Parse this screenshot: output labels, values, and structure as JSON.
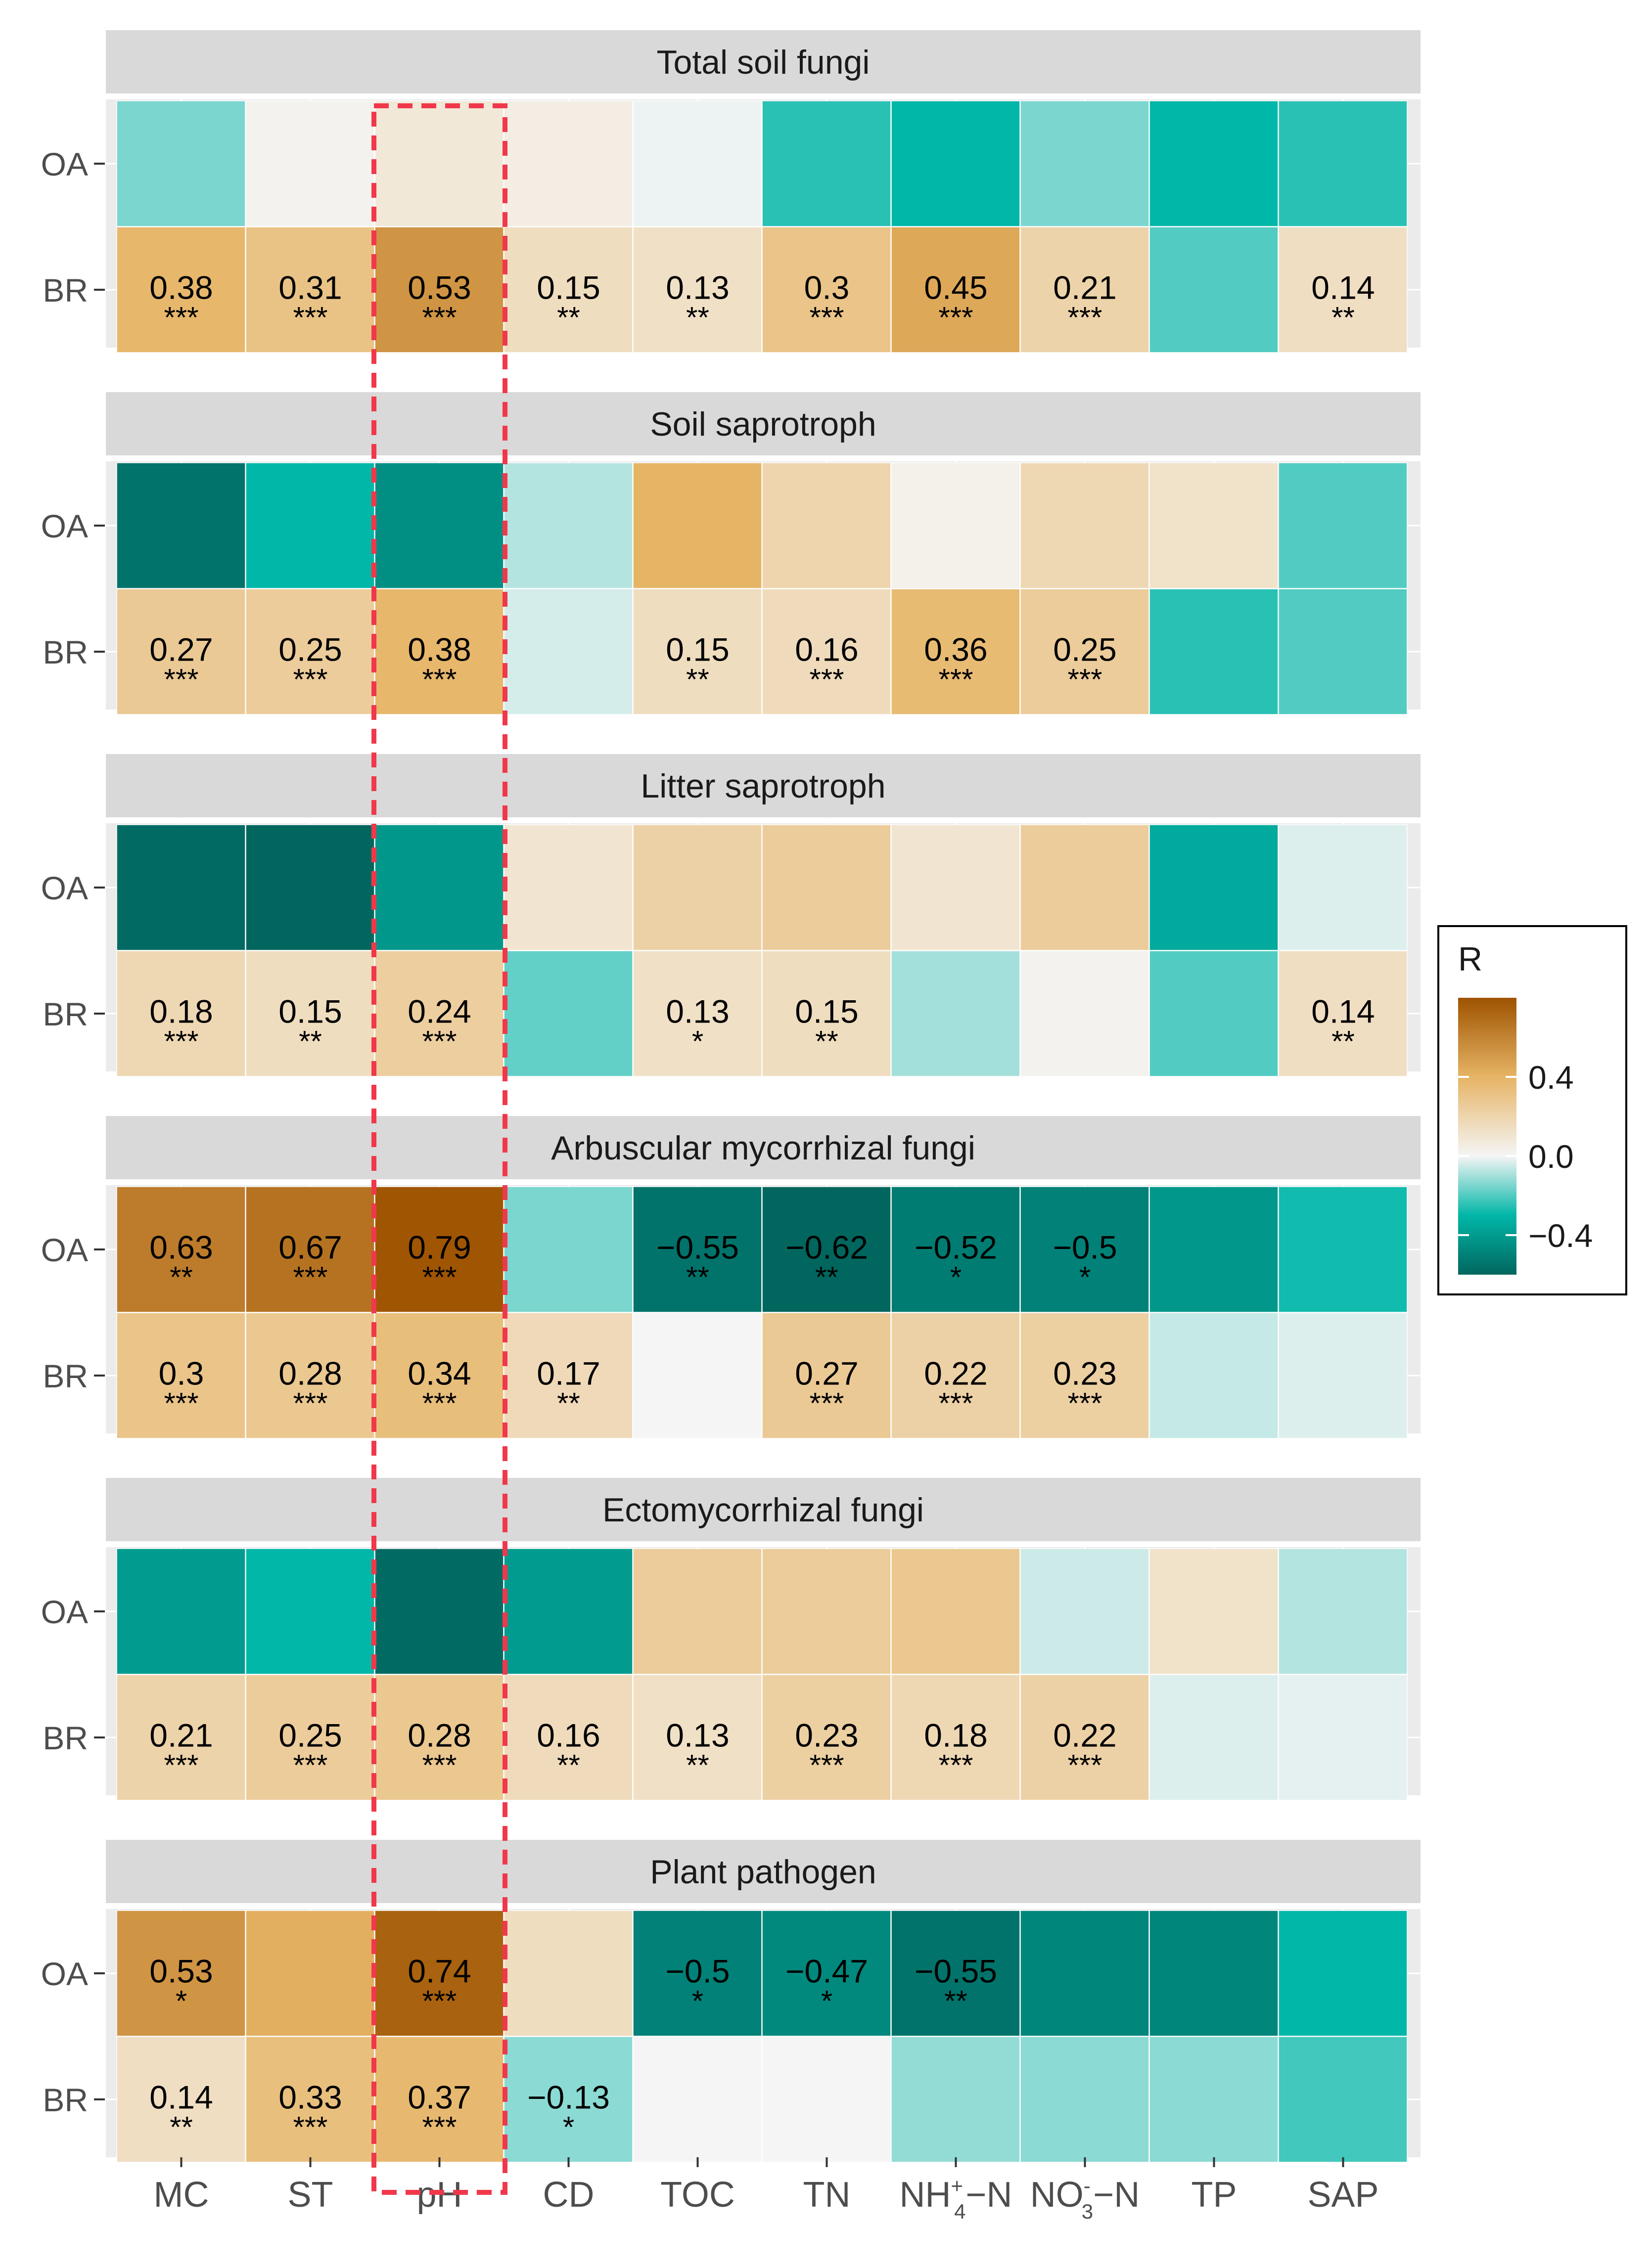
{
  "chart_data": {
    "type": "heatmap",
    "x_categories": [
      "MC",
      "ST",
      "pH",
      "CD",
      "TOC",
      "TN",
      "NH+4-N",
      "NO-3-N",
      "TP",
      "SAP"
    ],
    "y_categories": [
      "OA",
      "BR"
    ],
    "x_tick_labels": [
      {
        "main": "MC"
      },
      {
        "main": "ST"
      },
      {
        "main": "pH"
      },
      {
        "main": "CD"
      },
      {
        "main": "TOC"
      },
      {
        "main": "TN"
      },
      {
        "main": "NH",
        "sup": "+",
        "sub": "4",
        "suffix": "−N"
      },
      {
        "main": "NO",
        "sup": "-",
        "sub": "3",
        "suffix": "−N"
      },
      {
        "main": "TP"
      },
      {
        "main": "SAP"
      }
    ],
    "legend": {
      "title": "R",
      "min": -0.6,
      "max": 0.8,
      "ticks": [
        {
          "value": 0.4,
          "label": "0.4"
        },
        {
          "value": 0.0,
          "label": "0.0"
        },
        {
          "value": -0.4,
          "label": "−0.4"
        }
      ],
      "position": "right"
    },
    "highlight": {
      "column": "pH",
      "style": "dashed",
      "color": "#f0384b"
    },
    "colors": {
      "panel_bg": "#ebebeb",
      "strip_bg": "#d9d9d9",
      "neg_max": "#01665e",
      "neg_mid": "#01b7a8",
      "zero": "#f5f5f5",
      "pos_mid": "#e6b465",
      "pos_max": "#9e5300"
    },
    "panels": [
      {
        "title": "Total soil fungi",
        "OA": [
          -0.15,
          0.02,
          0.08,
          0.05,
          -0.01,
          -0.25,
          -0.3,
          -0.15,
          -0.3,
          -0.25
        ],
        "BR": [
          0.38,
          0.31,
          0.53,
          0.15,
          0.13,
          0.3,
          0.45,
          0.21,
          -0.2,
          0.14
        ],
        "OA_labels": [
          "",
          "",
          "",
          "",
          "",
          "",
          "",
          "",
          "",
          ""
        ],
        "BR_labels": [
          "0.38",
          "0.31",
          "0.53",
          "0.15",
          "0.13",
          "0.3",
          "0.45",
          "0.21",
          "",
          "0.14"
        ],
        "OA_stars": [
          "",
          "",
          "",
          "",
          "",
          "",
          "",
          "",
          "",
          ""
        ],
        "BR_stars": [
          "***",
          "***",
          "***",
          "**",
          "**",
          "***",
          "***",
          "***",
          "",
          "**"
        ]
      },
      {
        "title": "Soil saprotroph",
        "OA": [
          -0.55,
          -0.3,
          -0.45,
          -0.08,
          0.4,
          0.2,
          0.03,
          0.18,
          0.12,
          -0.2
        ],
        "BR": [
          0.27,
          0.25,
          0.38,
          -0.04,
          0.15,
          0.16,
          0.36,
          0.25,
          -0.25,
          -0.2
        ],
        "OA_labels": [
          "",
          "",
          "",
          "",
          "",
          "",
          "",
          "",
          "",
          ""
        ],
        "BR_labels": [
          "0.27",
          "0.25",
          "0.38",
          "",
          "0.15",
          "0.16",
          "0.36",
          "0.25",
          "",
          ""
        ],
        "OA_stars": [
          "",
          "",
          "",
          "",
          "",
          "",
          "",
          "",
          "",
          ""
        ],
        "BR_stars": [
          "***",
          "***",
          "***",
          "",
          "**",
          "***",
          "***",
          "***",
          "",
          ""
        ]
      },
      {
        "title": "Litter saprotroph",
        "OA": [
          -0.58,
          -0.62,
          -0.42,
          0.1,
          0.22,
          0.25,
          0.1,
          0.25,
          -0.35,
          -0.03
        ],
        "BR": [
          0.18,
          0.15,
          0.24,
          -0.18,
          0.13,
          0.15,
          -0.1,
          0.02,
          -0.2,
          0.14
        ],
        "OA_labels": [
          "",
          "",
          "",
          "",
          "",
          "",
          "",
          "",
          "",
          ""
        ],
        "BR_labels": [
          "0.18",
          "0.15",
          "0.24",
          "",
          "0.13",
          "0.15",
          "",
          "",
          "",
          "0.14"
        ],
        "OA_stars": [
          "",
          "",
          "",
          "",
          "",
          "",
          "",
          "",
          "",
          ""
        ],
        "BR_stars": [
          "***",
          "**",
          "***",
          "",
          "*",
          "**",
          "",
          "",
          "",
          "**"
        ]
      },
      {
        "title": "Arbuscular mycorrhizal fungi",
        "OA": [
          0.63,
          0.67,
          0.79,
          -0.15,
          -0.55,
          -0.62,
          -0.52,
          -0.5,
          -0.42,
          -0.28
        ],
        "BR": [
          0.3,
          0.28,
          0.34,
          0.17,
          0.0,
          0.27,
          0.22,
          0.23,
          -0.06,
          -0.03
        ],
        "OA_labels": [
          "0.63",
          "0.67",
          "0.79",
          "",
          "−0.55",
          "−0.62",
          "−0.52",
          "−0.5",
          "",
          ""
        ],
        "BR_labels": [
          "0.3",
          "0.28",
          "0.34",
          "0.17",
          "",
          "0.27",
          "0.22",
          "0.23",
          "",
          ""
        ],
        "OA_stars": [
          "**",
          "***",
          "***",
          "",
          "**",
          "**",
          "*",
          "*",
          "",
          ""
        ],
        "BR_stars": [
          "***",
          "***",
          "***",
          "**",
          "",
          "***",
          "***",
          "***",
          "",
          ""
        ]
      },
      {
        "title": "Ectomycorrhizal fungi",
        "OA": [
          -0.4,
          -0.3,
          -0.58,
          -0.4,
          0.25,
          0.25,
          0.28,
          -0.05,
          0.12,
          -0.08
        ],
        "BR": [
          0.21,
          0.25,
          0.28,
          0.16,
          0.13,
          0.23,
          0.18,
          0.22,
          -0.03,
          -0.02
        ],
        "OA_labels": [
          "",
          "",
          "",
          "",
          "",
          "",
          "",
          "",
          "",
          ""
        ],
        "BR_labels": [
          "0.21",
          "0.25",
          "0.28",
          "0.16",
          "0.13",
          "0.23",
          "0.18",
          "0.22",
          "",
          ""
        ],
        "OA_stars": [
          "",
          "",
          "",
          "",
          "",
          "",
          "",
          "",
          "",
          ""
        ],
        "BR_stars": [
          "***",
          "***",
          "***",
          "**",
          "**",
          "***",
          "***",
          "***",
          "",
          ""
        ]
      },
      {
        "title": "Plant pathogen",
        "OA": [
          0.53,
          0.42,
          0.74,
          0.15,
          -0.5,
          -0.47,
          -0.55,
          -0.48,
          -0.48,
          -0.3
        ],
        "BR": [
          0.14,
          0.33,
          0.37,
          -0.13,
          0.0,
          0.0,
          -0.12,
          -0.13,
          -0.13,
          -0.22
        ],
        "OA_labels": [
          "0.53",
          "",
          "0.74",
          "",
          "−0.5",
          "−0.47",
          "−0.55",
          "",
          "",
          ""
        ],
        "BR_labels": [
          "0.14",
          "0.33",
          "0.37",
          "−0.13",
          "",
          "",
          "",
          "",
          "",
          ""
        ],
        "OA_stars": [
          "*",
          "",
          "***",
          "",
          "*",
          "*",
          "**",
          "",
          "",
          ""
        ],
        "BR_stars": [
          "**",
          "***",
          "***",
          "*",
          "",
          "",
          "",
          "",
          "",
          ""
        ]
      }
    ]
  }
}
